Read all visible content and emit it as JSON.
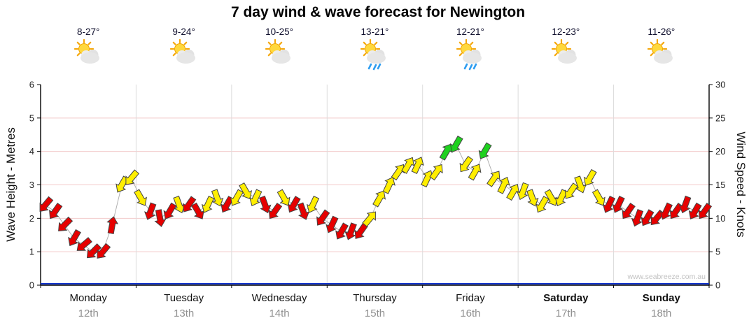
{
  "title": "7 day wind & wave forecast for Newington",
  "watermark": "www.seabreeze.com.au",
  "axes": {
    "left_label": "Wave Height - Metres",
    "right_label": "Wind Speed - Knots",
    "left_ticks": [
      0,
      1,
      2,
      3,
      4,
      5,
      6
    ],
    "right_ticks": [
      0,
      5,
      10,
      15,
      20,
      25,
      30
    ]
  },
  "days": [
    {
      "name": "Monday",
      "date": "12th",
      "temp": "8-27°",
      "icon": "sun-cloud",
      "weekend": false
    },
    {
      "name": "Tuesday",
      "date": "13th",
      "temp": "9-24°",
      "icon": "sun-cloud",
      "weekend": false
    },
    {
      "name": "Wednesday",
      "date": "14th",
      "temp": "10-25°",
      "icon": "sun-cloud",
      "weekend": false
    },
    {
      "name": "Thursday",
      "date": "15th",
      "temp": "13-21°",
      "icon": "sun-cloud-rain",
      "weekend": false
    },
    {
      "name": "Friday",
      "date": "16th",
      "temp": "12-21°",
      "icon": "sun-cloud-rain",
      "weekend": false
    },
    {
      "name": "Saturday",
      "date": "17th",
      "temp": "12-23°",
      "icon": "sun-cloud",
      "weekend": true
    },
    {
      "name": "Sunday",
      "date": "18th",
      "temp": "11-26°",
      "icon": "sun-cloud",
      "weekend": true
    }
  ],
  "chart_data": {
    "type": "line",
    "title": "7 day wind & wave forecast for Newington",
    "x_categories": [
      "Monday 12th",
      "Tuesday 13th",
      "Wednesday 14th",
      "Thursday 15th",
      "Friday 16th",
      "Saturday 17th",
      "Sunday 18th"
    ],
    "ylabel_left": "Wave Height - Metres",
    "ylabel_right": "Wind Speed - Knots",
    "ylim_left": [
      0,
      6
    ],
    "ylim_right": [
      0,
      30
    ],
    "grid": true,
    "wave_height_m": {
      "flat_value": 0
    },
    "wind": {
      "samples_per_day": 10,
      "knots_by_day": [
        [
          12,
          11,
          9,
          7,
          6,
          5,
          5,
          9,
          15,
          16
        ],
        [
          13,
          11,
          10,
          11,
          12,
          12,
          11,
          12,
          13,
          12
        ],
        [
          13,
          14,
          13,
          12,
          11,
          13,
          12,
          11,
          12,
          10
        ],
        [
          9,
          8,
          8,
          8,
          10,
          13,
          15,
          17,
          18,
          18
        ],
        [
          16,
          17,
          20,
          21,
          18,
          17,
          20,
          16,
          15,
          14
        ],
        [
          14,
          13,
          12,
          13,
          13,
          14,
          15,
          16,
          13,
          12
        ],
        [
          12,
          11,
          10,
          10,
          10,
          11,
          11,
          12,
          11,
          11
        ]
      ],
      "dirs_by_day": [
        [
          220,
          215,
          225,
          210,
          230,
          225,
          220,
          10,
          210,
          220
        ],
        [
          150,
          200,
          170,
          210,
          160,
          215,
          150,
          205,
          160,
          210
        ],
        [
          210,
          150,
          205,
          160,
          215,
          150,
          210,
          160,
          205,
          215
        ],
        [
          205,
          210,
          200,
          215,
          40,
          30,
          25,
          35,
          30,
          25
        ],
        [
          25,
          35,
          30,
          210,
          215,
          30,
          210,
          35,
          25,
          30
        ],
        [
          200,
          160,
          210,
          150,
          205,
          215,
          160,
          210,
          150,
          205
        ],
        [
          205,
          215,
          200,
          210,
          220,
          205,
          215,
          200,
          210,
          215
        ]
      ],
      "colors_by_day": [
        [
          "r",
          "r",
          "r",
          "r",
          "r",
          "r",
          "r",
          "r",
          "y",
          "y"
        ],
        [
          "y",
          "r",
          "r",
          "r",
          "y",
          "r",
          "r",
          "y",
          "y",
          "r"
        ],
        [
          "y",
          "y",
          "y",
          "r",
          "r",
          "y",
          "r",
          "r",
          "y",
          "r"
        ],
        [
          "r",
          "r",
          "r",
          "r",
          "y",
          "y",
          "y",
          "y",
          "y",
          "y"
        ],
        [
          "y",
          "y",
          "g",
          "g",
          "y",
          "y",
          "g",
          "y",
          "y",
          "y"
        ],
        [
          "y",
          "y",
          "y",
          "y",
          "y",
          "y",
          "y",
          "y",
          "y",
          "r"
        ],
        [
          "r",
          "r",
          "r",
          "r",
          "r",
          "r",
          "r",
          "r",
          "r",
          "r"
        ]
      ]
    },
    "color_map": {
      "r": "#e60000",
      "y": "#ffee00",
      "g": "#1fd11f"
    },
    "colors": {
      "wave_line": "#1133cc",
      "grid_h": "#f3c9c9",
      "grid_v": "#dcdcdc",
      "axis": "#000000",
      "connector": "#b0b0b0"
    }
  }
}
